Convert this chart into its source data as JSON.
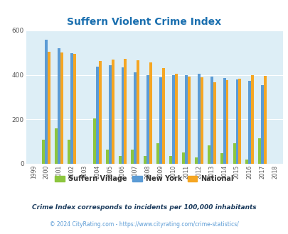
{
  "title": "Suffern Violent Crime Index",
  "title_color": "#1a6faf",
  "years": [
    1999,
    2000,
    2001,
    2002,
    2003,
    2004,
    2005,
    2006,
    2007,
    2008,
    2009,
    2010,
    2011,
    2012,
    2013,
    2014,
    2015,
    2016,
    2017,
    2018
  ],
  "suffern": [
    0,
    107,
    160,
    107,
    0,
    205,
    63,
    35,
    63,
    35,
    93,
    35,
    50,
    30,
    83,
    48,
    93,
    20,
    115,
    0
  ],
  "new_york": [
    0,
    558,
    520,
    498,
    0,
    438,
    443,
    435,
    410,
    400,
    390,
    398,
    400,
    405,
    393,
    385,
    378,
    373,
    353,
    0
  ],
  "national": [
    0,
    505,
    502,
    494,
    0,
    462,
    469,
    473,
    465,
    455,
    430,
    405,
    393,
    390,
    368,
    375,
    383,
    400,
    395,
    0
  ],
  "bar_color_suffern": "#8dc63f",
  "bar_color_ny": "#5b9bd5",
  "bar_color_national": "#f5a623",
  "plot_bg": "#ddeef6",
  "ylim": [
    0,
    600
  ],
  "yticks": [
    0,
    200,
    400,
    600
  ],
  "legend_labels": [
    "Suffern Village",
    "New York",
    "National"
  ],
  "footnote1": "Crime Index corresponds to incidents per 100,000 inhabitants",
  "footnote2": "© 2024 CityRating.com - https://www.cityrating.com/crime-statistics/",
  "footnote2_color": "#5b9bd5",
  "title_fontsize": 10,
  "legend_fontsize": 7,
  "footnote1_fontsize": 6.5,
  "footnote2_fontsize": 5.5
}
